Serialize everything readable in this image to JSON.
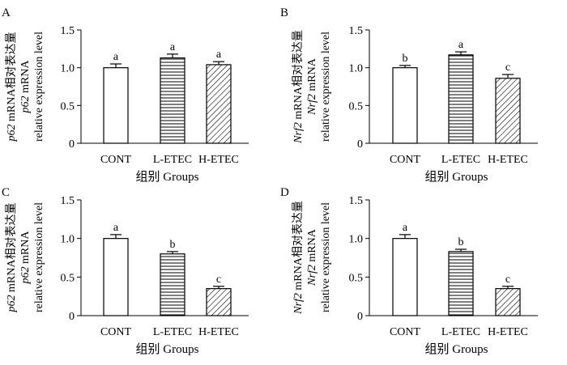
{
  "chart_data": [
    {
      "panel": "A",
      "type": "bar",
      "categories": [
        "CONT",
        "L-ETEC",
        "H-ETEC"
      ],
      "values": [
        1.0,
        1.13,
        1.04
      ],
      "errors": [
        0.05,
        0.05,
        0.04
      ],
      "letters": [
        "a",
        "a",
        "a"
      ],
      "ylabel_cn": "p62 mRNA相对表达量",
      "ylabel_gene": "p62 mRNA",
      "ylabel_en": "relative expression level",
      "xlabel": "组别 Groups",
      "yticks": [
        "0",
        "0.5",
        "1.0",
        "1.5"
      ],
      "ylim": [
        0,
        1.5
      ]
    },
    {
      "panel": "B",
      "type": "bar",
      "categories": [
        "CONT",
        "L-ETEC",
        "H-ETEC"
      ],
      "values": [
        1.0,
        1.17,
        0.86
      ],
      "errors": [
        0.03,
        0.04,
        0.05
      ],
      "letters": [
        "b",
        "a",
        "c"
      ],
      "ylabel_cn": "Nrf2 mRNA相对表达量",
      "ylabel_gene": "Nrf2 mRNA",
      "ylabel_en": "relative expression level",
      "xlabel": "组别 Groups",
      "yticks": [
        "0",
        "0.5",
        "1.0",
        "1.5"
      ],
      "ylim": [
        0,
        1.5
      ]
    },
    {
      "panel": "C",
      "type": "bar",
      "categories": [
        "CONT",
        "L-ETEC",
        "H-ETEC"
      ],
      "values": [
        1.0,
        0.8,
        0.35
      ],
      "errors": [
        0.05,
        0.03,
        0.03
      ],
      "letters": [
        "a",
        "b",
        "c"
      ],
      "ylabel_cn": "p62 mRNA相对表达量",
      "ylabel_gene": "p62 mRNA",
      "ylabel_en": "relative expression level",
      "xlabel": "组别 Groups",
      "yticks": [
        "0",
        "0.5",
        "1.0",
        "1.5"
      ],
      "ylim": [
        0,
        1.5
      ]
    },
    {
      "panel": "D",
      "type": "bar",
      "categories": [
        "CONT",
        "L-ETEC",
        "H-ETEC"
      ],
      "values": [
        1.0,
        0.83,
        0.35
      ],
      "errors": [
        0.05,
        0.03,
        0.03
      ],
      "letters": [
        "a",
        "b",
        "c"
      ],
      "ylabel_cn": "Nrf2 mRNA相对表达量",
      "ylabel_gene": "Nrf2 mRNA",
      "ylabel_en": "relative expression level",
      "xlabel": "组别 Groups",
      "yticks": [
        "0",
        "0.5",
        "1.0",
        "1.5"
      ],
      "ylim": [
        0,
        1.5
      ]
    }
  ]
}
